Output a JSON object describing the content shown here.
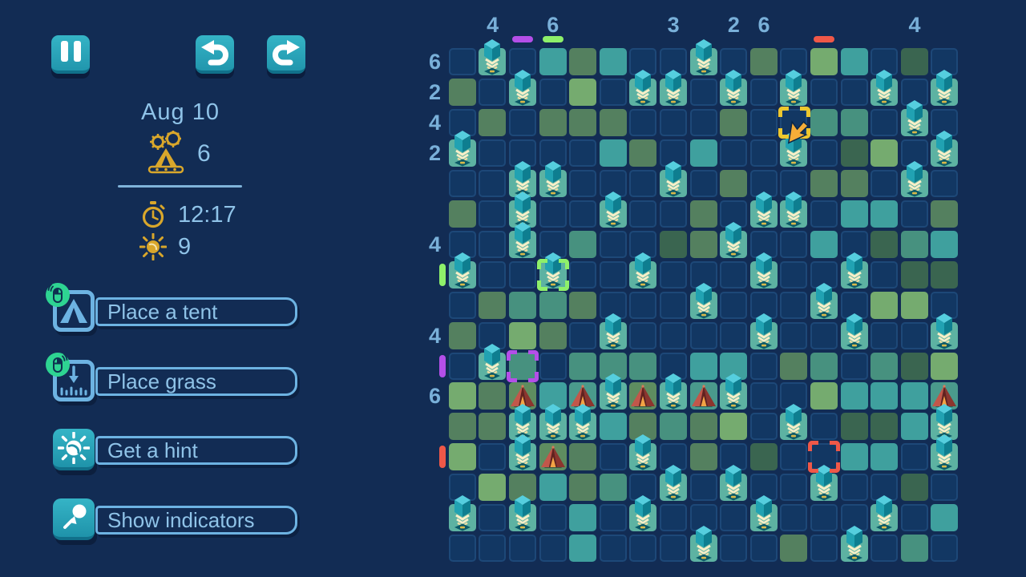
{
  "hud": {
    "date": "Aug 10",
    "tents_counter": "6",
    "timer": "12:17",
    "hints_counter": "9",
    "icons": [
      "pause-icon",
      "undo-icon",
      "redo-icon",
      "gears-tent-icon",
      "stopwatch-icon",
      "sun-icon"
    ]
  },
  "tools": [
    {
      "label": "Place a tent",
      "icon": "tent-icon",
      "badge": "mouse-left-click"
    },
    {
      "label": "Place grass",
      "icon": "grass-icon",
      "badge": "mouse-right-click"
    },
    {
      "label": "Get a hint",
      "icon": "hint-sun-icon",
      "badge": null
    },
    {
      "label": "Show indicators",
      "icon": "indicator-cursor-icon",
      "badge": null
    }
  ],
  "grid": {
    "rows": 17,
    "cols": 17,
    "col_headers": [
      "",
      "4",
      "",
      "6",
      "",
      "",
      "",
      "3",
      "",
      "2",
      "6",
      "",
      "",
      "",
      "",
      "4",
      ""
    ],
    "row_headers": [
      "6",
      "2",
      "4",
      "2",
      "",
      "",
      "4",
      "",
      "",
      "4",
      "",
      "6",
      "",
      "",
      "",
      "",
      ""
    ],
    "legend": {
      ".": "empty",
      "g1": "grass-olive",
      "g2": "grass-teal-green",
      "g3": "grass-light",
      "g4": "grass-teal",
      "g5": "grass-dark",
      "tr": "tree",
      "tn1": "tent-on-olive",
      "tn2": "tent-on-teal"
    },
    "cells": [
      ". tr . g4 g1 g4 . . tr . g1 . g3 g4 . g5 .",
      "g1 . tr . g3 . tr tr . tr . tr . . tr . tr",
      ". g1 . g1 g1 g1 . . . g1 . . g2 g2 . tr .",
      "tr . . . . g4 g1 . g4 . . tr . g5 g3 . tr",
      ". . tr tr . . . tr . g1 . . g1 g1 . tr .",
      "g1 . tr . . tr . . g1 . tr tr . g4 g4 . g1",
      ". . tr . g2 . . g5 g1 tr . . g4 . g5 g2 g4",
      "tr . . tr . . tr . . . tr . . tr . g5 g5",
      ". g1 g2 g2 g1 . . . tr . . . tr . g3 g3 .",
      "g1 . g3 g1 . tr . . . . tr . . tr . . tr",
      ". tr g2 . g2 g2 g2 . g4 g4 . g1 g2 . g2 g5 g3",
      "g3 g1 tn1 g4 tn2 tr tn1 tr tn2 tr . . g3 g4 g4 g4 tn2",
      "g1 g1 tr tr tr g4 g1 g2 g1 g3 . tr . g5 g5 g4 tr",
      "g3 . tr tn1 g1 . tr . g1 . g5 . . g4 g4 . tr",
      ". g3 g1 g4 g1 g2 . tr . tr . . tr . . g5 .",
      "tr . tr . g4 . tr . . . tr . . . tr . g4",
      ". . . . g4 . . . tr . . g1 . tr . g2 ."
    ],
    "selections": [
      {
        "row": 3,
        "col": 12,
        "color": "#edc72e",
        "cursor": true
      },
      {
        "row": 8,
        "col": 4,
        "color": "#8ef06a",
        "cursor": false
      },
      {
        "row": 11,
        "col": 3,
        "color": "#b44fe8",
        "cursor": false
      },
      {
        "row": 14,
        "col": 13,
        "color": "#ef5848",
        "cursor": false
      }
    ],
    "edge_bars": {
      "top": [
        {
          "col": 3,
          "color": "#b44fe8"
        },
        {
          "col": 4,
          "color": "#8ef06a"
        },
        {
          "col": 13,
          "color": "#ef5848"
        }
      ],
      "left": [
        {
          "row": 8,
          "color": "#8ef06a"
        },
        {
          "row": 11,
          "color": "#b44fe8"
        },
        {
          "row": 14,
          "color": "#ef5848"
        }
      ]
    }
  },
  "colors": {
    "background": "#122c54",
    "cell_empty": "#123763",
    "cell_border": "#1d4878",
    "grass_olive": "#54805f",
    "grass_teal_green": "#47917f",
    "grass_light": "#75ab6f",
    "grass_teal": "#3fa09e",
    "grass_dark": "#3a6550",
    "tree_cell": "#5db2a2",
    "tent_cell_olive": "#5e8d60",
    "tent_cell_teal": "#4a9a8c",
    "accent_text": "#8fc3e8",
    "button_teal": "#2aa6bc",
    "gold": "#d9a72b",
    "badge_green": "#2ed492",
    "cursor_yellow": "#edc72e",
    "selection_green": "#8ef06a",
    "selection_purple": "#b44fe8",
    "selection_red": "#ef5848"
  }
}
